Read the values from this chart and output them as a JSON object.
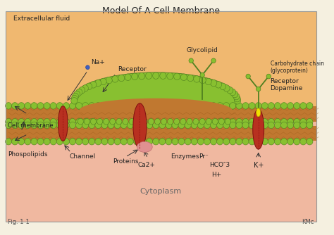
{
  "title": "Model Of A Cell Membrane",
  "bg_outer": "#f5f0e0",
  "bg_extracellular": "#f0b870",
  "bg_cytoplasm": "#f0b8a0",
  "lipid_green": "#88c030",
  "lipid_green_dark": "#508020",
  "protein_red": "#b83020",
  "membrane_orange": "#c87840",
  "fig_label": "Fig. 1-1",
  "fig_credit": "KMc",
  "labels": {
    "extracellular": "Extracellular fluid",
    "cell_membrane": "Cell membrane",
    "channel": "Channel",
    "phospolipids": "Phospolipids",
    "proteins": "Proteins",
    "ca2": "Ca2+",
    "enzymes": "Enzymes",
    "pr": "Pr⁻",
    "hco3": "HCO″3",
    "h": "H+",
    "k": "K+",
    "na": "Na+",
    "receptor1": "Receptor",
    "glycolipid": "Glycolipid",
    "carbohydrate": "Carbohydrate chain\n(glycoprotein)",
    "receptor2": "Receptor",
    "dopamine": "Dopamine",
    "cytoplasm": "Cytoplasm"
  }
}
